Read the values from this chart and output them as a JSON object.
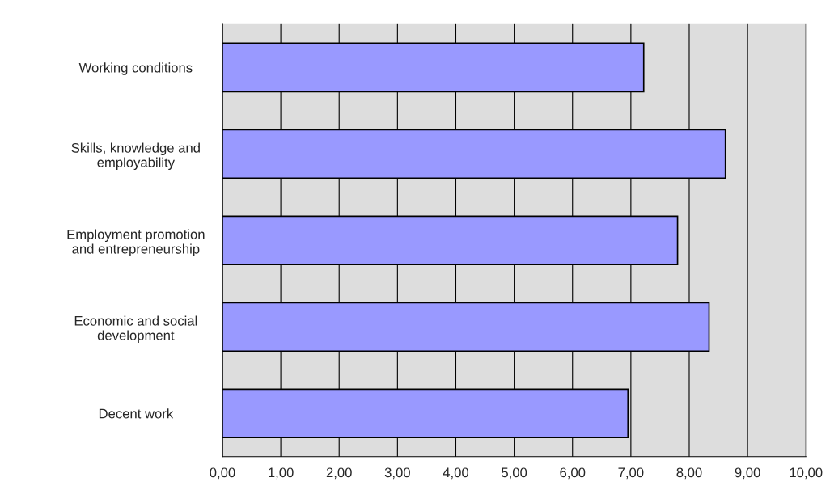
{
  "chart_data": {
    "type": "bar",
    "orientation": "horizontal",
    "categories": [
      "Working conditions",
      "Skills, knowledge and\nemployability",
      "Employment promotion\nand entrepreneurship",
      "Economic and social\ndevelopment",
      "Decent work"
    ],
    "values": [
      7.22,
      8.62,
      7.8,
      8.34,
      6.95
    ],
    "color": "#9999ff",
    "xlim": [
      0,
      10
    ],
    "xticks": [
      {
        "value": 0,
        "label": "0,00"
      },
      {
        "value": 1,
        "label": "1,00"
      },
      {
        "value": 2,
        "label": "2,00"
      },
      {
        "value": 3,
        "label": "3,00"
      },
      {
        "value": 4,
        "label": "4,00"
      },
      {
        "value": 5,
        "label": "5,00"
      },
      {
        "value": 6,
        "label": "6,00"
      },
      {
        "value": 7,
        "label": "7,00"
      },
      {
        "value": 8,
        "label": "8,00"
      },
      {
        "value": 9,
        "label": "9,00"
      },
      {
        "value": 10,
        "label": "10,00"
      }
    ],
    "grid": "x",
    "legend": false
  }
}
